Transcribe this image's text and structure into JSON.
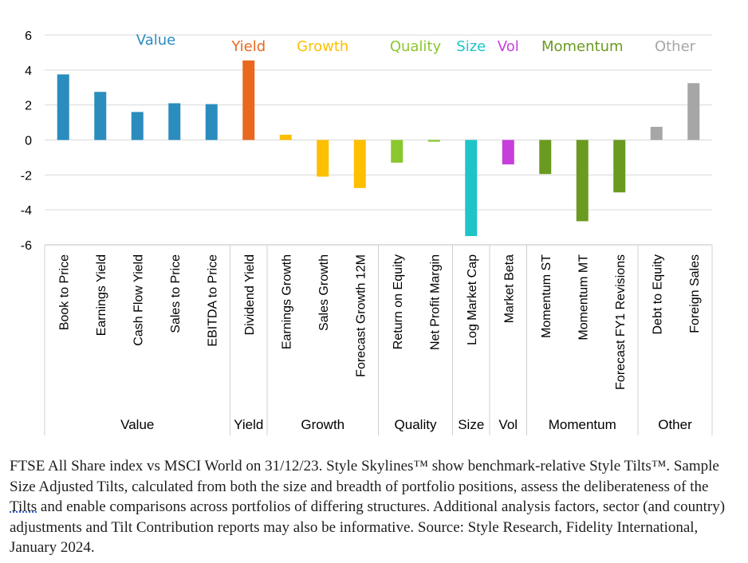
{
  "chart_data": {
    "type": "bar",
    "ylim": [
      -6,
      6
    ],
    "yticks": [
      6,
      4,
      2,
      0,
      -2,
      -4,
      -6
    ],
    "grid": true,
    "groups": [
      {
        "name": "Value",
        "title": "Value",
        "color": "#2b8cbe",
        "categories": [
          "Book to Price",
          "Earnings Yield",
          "Cash Flow Yield",
          "Sales to Price",
          "EBITDA to Price"
        ],
        "values": [
          3.75,
          2.75,
          1.6,
          2.1,
          2.05
        ]
      },
      {
        "name": "Yield",
        "title": "Yield",
        "color": "#e8681f",
        "categories": [
          "Dividend Yield"
        ],
        "values": [
          4.55
        ]
      },
      {
        "name": "Growth",
        "title": "Growth",
        "color": "#fdbf00",
        "categories": [
          "Earnings Growth",
          "Sales Growth",
          "Forecast Growth 12M"
        ],
        "values": [
          0.3,
          -2.1,
          -2.75
        ]
      },
      {
        "name": "Quality",
        "title": "Quality",
        "color": "#8bc72f",
        "categories": [
          "Return on Equity",
          "Net Profit Margin"
        ],
        "values": [
          -1.3,
          -0.1
        ]
      },
      {
        "name": "Size",
        "title": "Size",
        "color": "#1fc4c9",
        "categories": [
          "Log Market Cap"
        ],
        "values": [
          -5.5
        ]
      },
      {
        "name": "Vol",
        "title": "Vol",
        "color": "#c63fdb",
        "categories": [
          "Market Beta"
        ],
        "values": [
          -1.4
        ]
      },
      {
        "name": "Momentum",
        "title": "Momentum",
        "color": "#6a9a1f",
        "categories": [
          "Momentum ST",
          "Momentum MT",
          "Forecast FY1 Revisions"
        ],
        "values": [
          -1.95,
          -4.65,
          -3.0
        ]
      },
      {
        "name": "Other",
        "title": "Other",
        "color": "#a6a6a6",
        "categories": [
          "Debt to Equity",
          "Foreign Sales"
        ],
        "values": [
          0.75,
          3.25
        ]
      }
    ]
  },
  "caption": {
    "part1": "FTSE All Share index vs MSCI World on 31/12/23. Style Skylines™ show benchmark-relative Style Tilts™. Sample Size Adjusted Tilts, calculated from both the size and breadth of portfolio positions, assess the deliberateness of the ",
    "link": "Tilts",
    "part2": " and enable comparisons across portfolios of differing structures. Additional analysis factors, sector (and country) adjustments and Tilt Contribution reports may also be informative. Source: Style Research, Fidelity International, January 2024."
  }
}
